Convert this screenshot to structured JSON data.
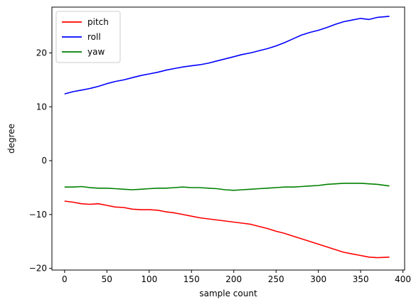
{
  "chart_data": {
    "type": "line",
    "xlabel": "sample count",
    "ylabel": "degree",
    "xlim": [
      -15,
      402
    ],
    "ylim": [
      -20.3,
      28.5
    ],
    "xticks": [
      0,
      50,
      100,
      150,
      200,
      250,
      300,
      350,
      400
    ],
    "yticks": [
      -20,
      -10,
      0,
      10,
      20
    ],
    "grid": false,
    "legend_position": "top-left",
    "series": [
      {
        "name": "pitch",
        "color": "#ff0000",
        "x": [
          0,
          10,
          20,
          30,
          40,
          50,
          60,
          70,
          80,
          90,
          100,
          110,
          120,
          130,
          140,
          150,
          160,
          170,
          180,
          190,
          200,
          210,
          220,
          230,
          240,
          250,
          260,
          270,
          280,
          290,
          300,
          310,
          320,
          330,
          340,
          350,
          360,
          370,
          384
        ],
        "y": [
          -7.5,
          -7.7,
          -8.0,
          -8.1,
          -8.0,
          -8.3,
          -8.6,
          -8.7,
          -9.0,
          -9.1,
          -9.1,
          -9.2,
          -9.5,
          -9.7,
          -10.0,
          -10.3,
          -10.6,
          -10.8,
          -11.0,
          -11.2,
          -11.4,
          -11.6,
          -11.8,
          -12.2,
          -12.6,
          -13.1,
          -13.5,
          -14.0,
          -14.5,
          -15.0,
          -15.5,
          -16.0,
          -16.5,
          -17.0,
          -17.3,
          -17.6,
          -17.9,
          -18.0,
          -17.9
        ]
      },
      {
        "name": "roll",
        "color": "#0000ff",
        "x": [
          0,
          10,
          20,
          30,
          40,
          50,
          60,
          70,
          80,
          90,
          100,
          110,
          120,
          130,
          140,
          150,
          160,
          170,
          180,
          190,
          200,
          210,
          220,
          230,
          240,
          250,
          260,
          270,
          280,
          290,
          300,
          310,
          320,
          330,
          340,
          350,
          360,
          370,
          384
        ],
        "y": [
          12.4,
          12.8,
          13.1,
          13.4,
          13.8,
          14.3,
          14.7,
          15.0,
          15.4,
          15.8,
          16.1,
          16.4,
          16.8,
          17.1,
          17.4,
          17.6,
          17.8,
          18.1,
          18.5,
          18.9,
          19.3,
          19.7,
          20.0,
          20.4,
          20.8,
          21.3,
          21.9,
          22.6,
          23.3,
          23.8,
          24.2,
          24.7,
          25.3,
          25.8,
          26.1,
          26.4,
          26.2,
          26.6,
          26.8
        ]
      },
      {
        "name": "yaw",
        "color": "#008000",
        "x": [
          0,
          10,
          20,
          30,
          40,
          50,
          60,
          70,
          80,
          90,
          100,
          110,
          120,
          130,
          140,
          150,
          160,
          170,
          180,
          190,
          200,
          210,
          220,
          230,
          240,
          250,
          260,
          270,
          280,
          290,
          300,
          310,
          320,
          330,
          340,
          350,
          360,
          370,
          384
        ],
        "y": [
          -4.9,
          -4.9,
          -4.8,
          -5.0,
          -5.1,
          -5.1,
          -5.2,
          -5.3,
          -5.4,
          -5.3,
          -5.2,
          -5.1,
          -5.1,
          -5.0,
          -4.9,
          -5.0,
          -5.0,
          -5.1,
          -5.2,
          -5.4,
          -5.5,
          -5.4,
          -5.3,
          -5.2,
          -5.1,
          -5.0,
          -4.9,
          -4.9,
          -4.8,
          -4.7,
          -4.6,
          -4.4,
          -4.3,
          -4.2,
          -4.2,
          -4.2,
          -4.3,
          -4.4,
          -4.7
        ]
      }
    ]
  }
}
